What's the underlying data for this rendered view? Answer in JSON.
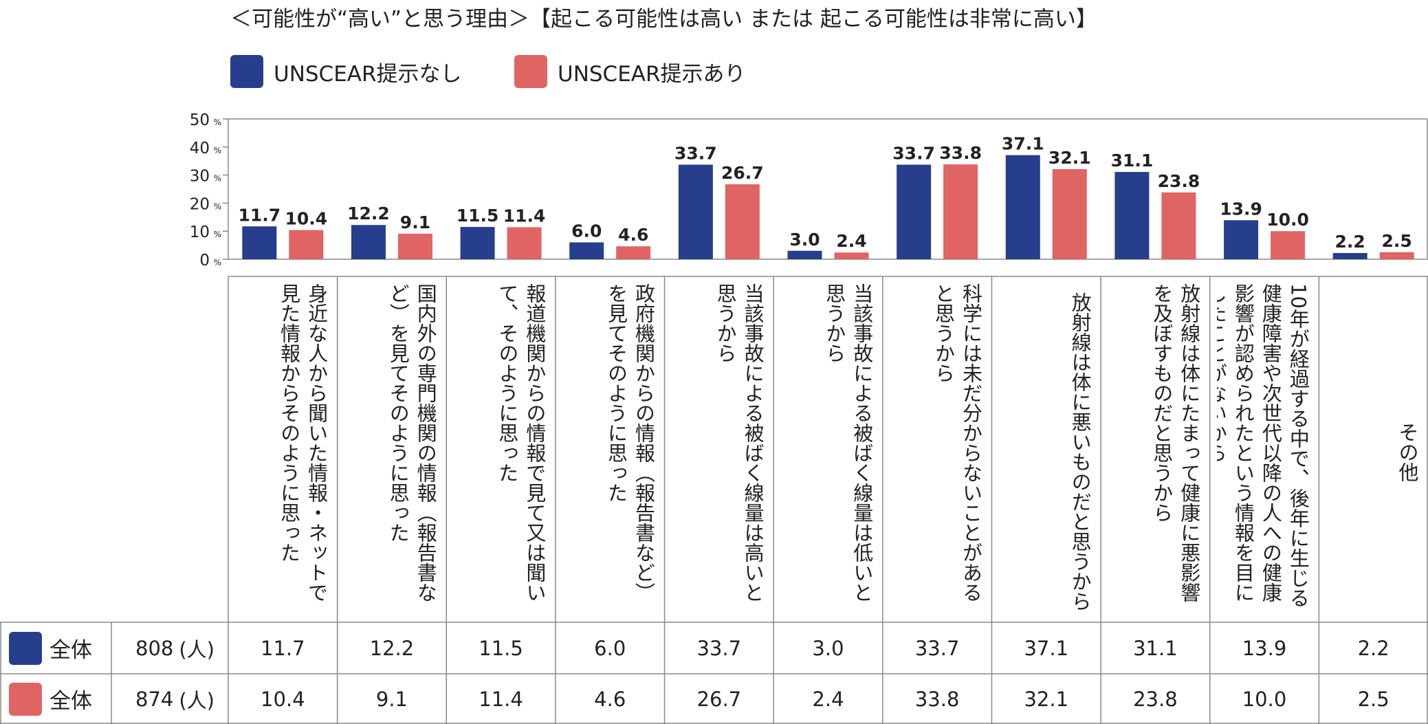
{
  "title": "＜可能性が“高い”と思う理由＞【起こる可能性は高い または 起こる可能性は非常に高い】",
  "legend": [
    {
      "label": "UNSCEAR提示なし",
      "color": "#263e8b"
    },
    {
      "label": "UNSCEAR提示あり",
      "color": "#e06464"
    }
  ],
  "percent_sign": "%",
  "chart_data": {
    "type": "bar",
    "categories": [
      "身近な人から聞いた情報・ネットで見た情報からそのように思った",
      "国内外の専門機関の情報（報告書など）を見てそのように思った",
      "報道機関からの情報で見て又は聞いて、そのように思った",
      "政府機関からの情報（報告書など）を見てそのように思った",
      "当該事故による被ばく線量は高いと思うから",
      "当該事故による被ばく線量は低いと思うから",
      "科学には未だ分からないことがあると思うから",
      "放射線は体に悪いものだと思うから",
      "放射線は体にたまって健康に悪影響を及ぼすものだと思うから",
      "10年が経過する中で、後年に生じる健康障害や次世代以降の人への健康影響が認められたという情報を目にしたことがないから",
      "その他"
    ],
    "series": [
      {
        "name": "UNSCEAR提示なし",
        "color": "#263e8b",
        "values": [
          11.7,
          12.2,
          11.5,
          6.0,
          33.7,
          3.0,
          33.7,
          37.1,
          31.1,
          13.9,
          2.2
        ],
        "labels": [
          "11.7",
          "12.2",
          "11.5",
          "6.0",
          "33.7",
          "3.0",
          "33.7",
          "37.1",
          "31.1",
          "13.9",
          "2.2"
        ]
      },
      {
        "name": "UNSCEAR提示あり",
        "color": "#e06464",
        "values": [
          10.4,
          9.1,
          11.4,
          4.6,
          26.7,
          2.4,
          33.8,
          32.1,
          23.8,
          10.0,
          2.5
        ],
        "labels": [
          "10.4",
          "9.1",
          "11.4",
          "4.6",
          "26.7",
          "2.4",
          "33.8",
          "32.1",
          "23.8",
          "10.0",
          "2.5"
        ]
      }
    ],
    "yticks": [
      "50",
      "40",
      "30",
      "20",
      "10",
      "0"
    ],
    "ylim": [
      0,
      50
    ],
    "grid": false
  },
  "table": {
    "rows": [
      {
        "color": "#263e8b",
        "group": "全体",
        "n": "808",
        "unit": "(人)",
        "values": [
          "11.7",
          "12.2",
          "11.5",
          "6.0",
          "33.7",
          "3.0",
          "33.7",
          "37.1",
          "31.1",
          "13.9",
          "2.2"
        ]
      },
      {
        "color": "#e06464",
        "group": "全体",
        "n": "874",
        "unit": "(人)",
        "values": [
          "10.4",
          "9.1",
          "11.4",
          "4.6",
          "26.7",
          "2.4",
          "33.8",
          "32.1",
          "23.8",
          "10.0",
          "2.5"
        ]
      }
    ]
  }
}
